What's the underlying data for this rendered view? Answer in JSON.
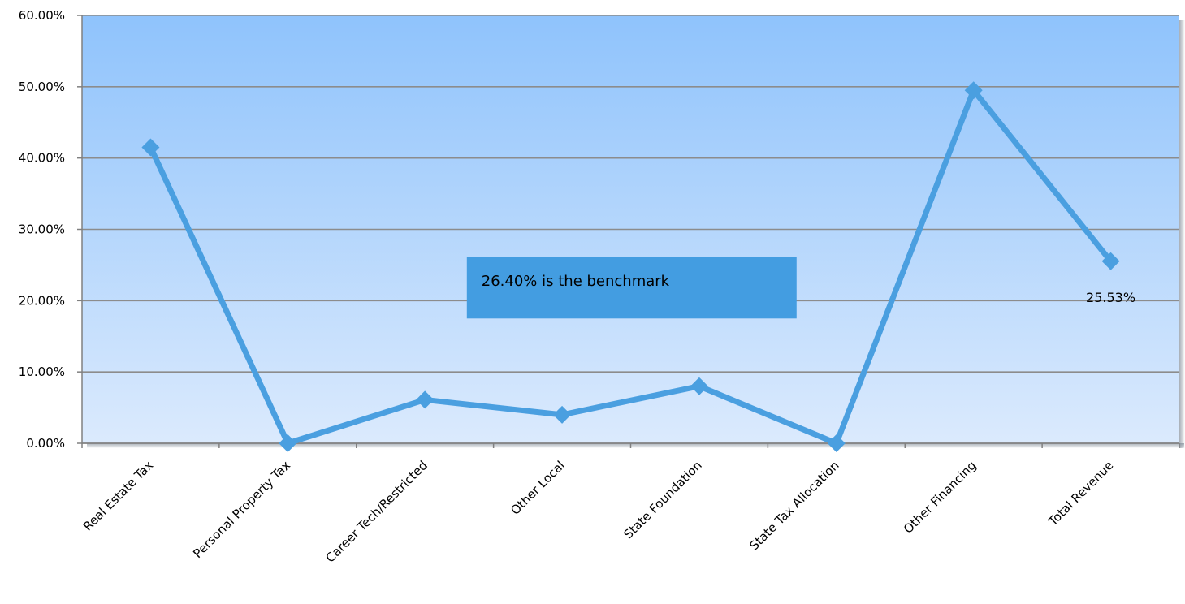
{
  "chart_data": {
    "type": "line",
    "title": "",
    "xlabel": "",
    "ylabel": "",
    "categories": [
      "Real Estate Tax",
      "Personal Property Tax",
      "Career Tech/Restricted",
      "Other Local",
      "State Foundation",
      "State Tax Allocation",
      "Other Financing",
      "Total Revenue"
    ],
    "series": [
      {
        "values": [
          41.5,
          0.0,
          6.1,
          4.0,
          8.0,
          0.0,
          49.5,
          25.53
        ]
      }
    ],
    "y_ticks": [
      "0.00%",
      "10.00%",
      "20.00%",
      "30.00%",
      "40.00%",
      "50.00%",
      "60.00%"
    ],
    "ylim": [
      0,
      60
    ],
    "y_unit": "%",
    "grid": true,
    "legend": "none",
    "data_labels": [
      {
        "category_index": 7,
        "text": "25.53%"
      }
    ],
    "annotation": {
      "text": "26.40% is the benchmark"
    },
    "colors": {
      "line": "#4a9fe0",
      "plot_top": "#8fc3fc",
      "plot_bottom": "#dbeafd",
      "annotation_fill": "#439de1",
      "grid": "#8c8c8c"
    }
  }
}
